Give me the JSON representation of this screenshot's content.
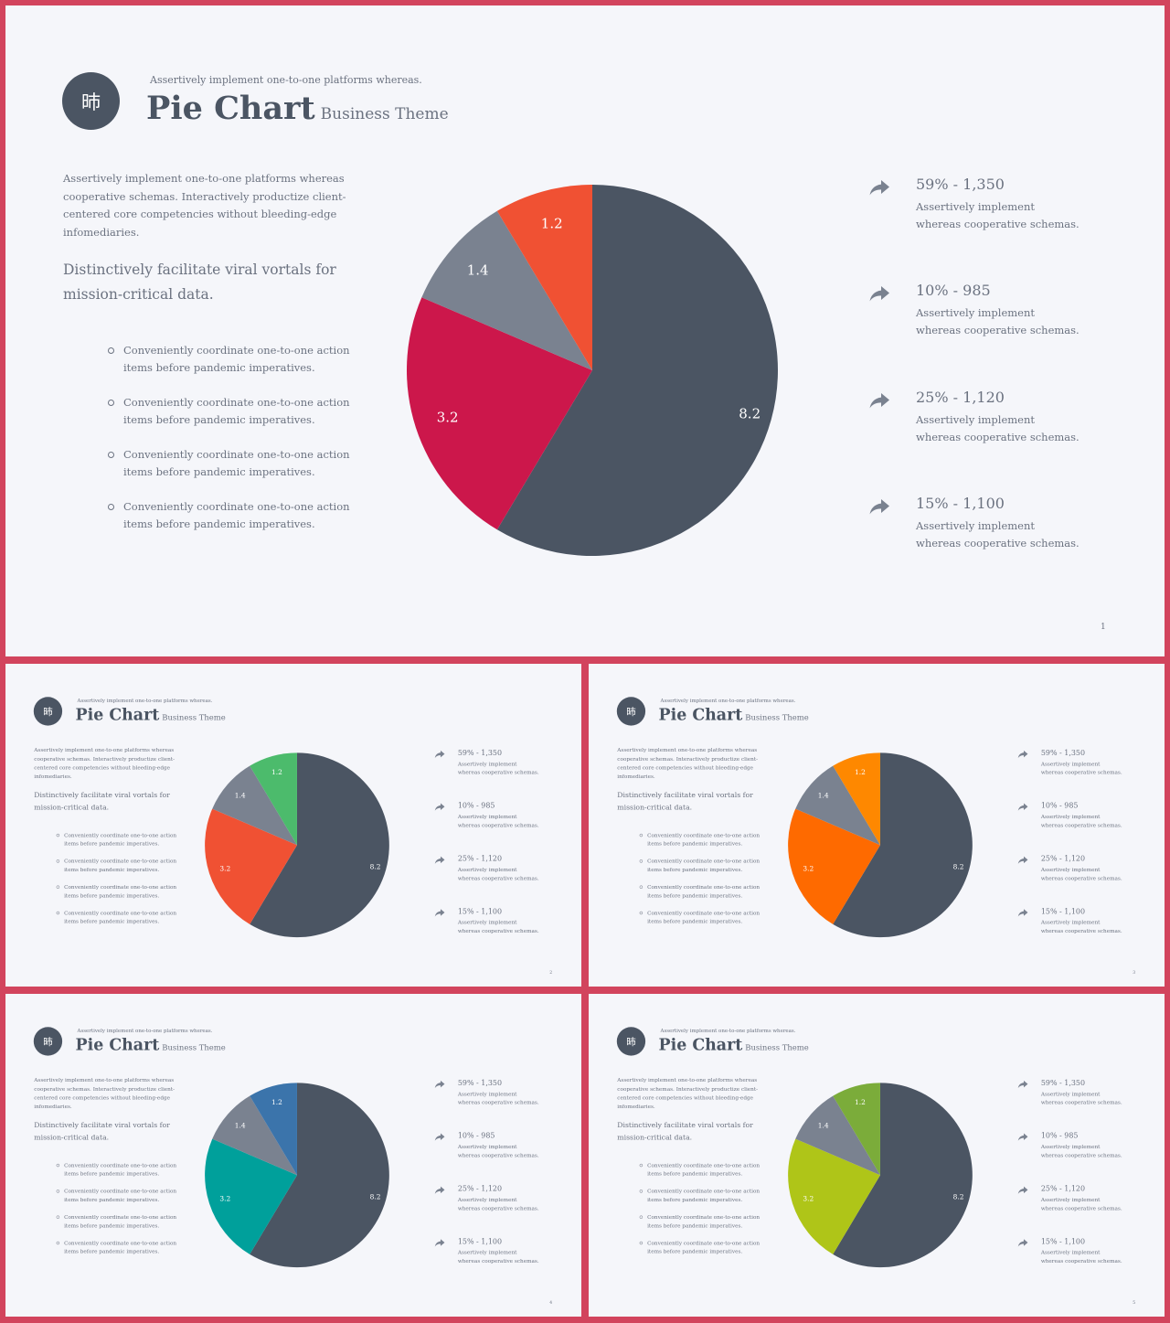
{
  "slide": {
    "logo_glyph": "昁",
    "kicker": "Assertively implement one-to-one platforms whereas.",
    "title": "Pie Chart",
    "subtitle": "Business Theme",
    "intro": "Assertively implement one-to-one platforms whereas cooperative schemas. Interactively productize client-centered core competencies without bleeding-edge infomediaries.",
    "lead": "Distinctively facilitate viral vortals for mission-critical data.",
    "bullets": [
      "Conveniently coordinate one-to-one action items before pandemic imperatives.",
      "Conveniently coordinate one-to-one action items before pandemic imperatives.",
      "Conveniently coordinate one-to-one action items before pandemic imperatives.",
      "Conveniently coordinate one-to-one action items before pandemic imperatives."
    ],
    "stats": [
      {
        "value": "59% - 1,350",
        "desc": "Assertively implement whereas cooperative schemas."
      },
      {
        "value": "10% - 985",
        "desc": "Assertively implement whereas cooperative schemas."
      },
      {
        "value": "25% - 1,120",
        "desc": "Assertively implement whereas cooperative schemas."
      },
      {
        "value": "15% - 1,100",
        "desc": "Assertively implement whereas cooperative schemas."
      }
    ]
  },
  "colors": {
    "frame": "#d2445d",
    "slide_bg": "#f5f6fa",
    "text": "#6b7280",
    "title": "#4b5563",
    "icon": "#7a8290"
  },
  "icons": {
    "stat_arrow": "share-arrow-icon"
  },
  "chart_data": [
    {
      "type": "pie",
      "labels": [
        "8.2",
        "3.2",
        "1.4",
        "1.2"
      ],
      "values": [
        8.2,
        3.2,
        1.4,
        1.2
      ],
      "colors": [
        "#4b5563",
        "#cc174b",
        "#7a8290",
        "#f05133"
      ],
      "page": "1",
      "label_colors": [
        "#ffffff",
        "#ffffff",
        "#ffffff",
        "#ffffff"
      ]
    },
    {
      "type": "pie",
      "labels": [
        "8.2",
        "3.2",
        "1.4",
        "1.2"
      ],
      "values": [
        8.2,
        3.2,
        1.4,
        1.2
      ],
      "colors": [
        "#4b5563",
        "#f05133",
        "#7a8290",
        "#4cbb6c"
      ],
      "page": "2",
      "label_colors": [
        "#ffffff",
        "#ffffff",
        "#ffffff",
        "#ffffff"
      ]
    },
    {
      "type": "pie",
      "labels": [
        "8.2",
        "3.2",
        "1.4",
        "1.2"
      ],
      "values": [
        8.2,
        3.2,
        1.4,
        1.2
      ],
      "colors": [
        "#4b5563",
        "#fe6a00",
        "#7a8290",
        "#fe8800"
      ],
      "page": "3",
      "label_colors": [
        "#ffffff",
        "#ffffff",
        "#ffffff",
        "#ffffff"
      ]
    },
    {
      "type": "pie",
      "labels": [
        "8.2",
        "3.2",
        "1.4",
        "1.2"
      ],
      "values": [
        8.2,
        3.2,
        1.4,
        1.2
      ],
      "colors": [
        "#4b5563",
        "#00a09b",
        "#7a8290",
        "#3b74ab"
      ],
      "page": "4",
      "label_colors": [
        "#ffffff",
        "#ffffff",
        "#ffffff",
        "#ffffff"
      ]
    },
    {
      "type": "pie",
      "labels": [
        "8.2",
        "3.2",
        "1.4",
        "1.2"
      ],
      "values": [
        8.2,
        3.2,
        1.4,
        1.2
      ],
      "colors": [
        "#4b5563",
        "#afc518",
        "#7a8290",
        "#7bac3a"
      ],
      "page": "5",
      "label_colors": [
        "#ffffff",
        "#ffffff",
        "#ffffff",
        "#ffffff"
      ]
    }
  ]
}
